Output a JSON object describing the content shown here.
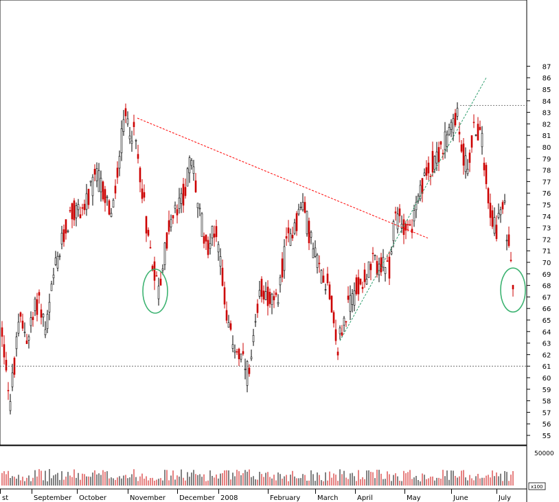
{
  "chart_data": {
    "type": "candlestick",
    "x_labels": [
      "st",
      "September",
      "October",
      "November",
      "December",
      "2008",
      "February",
      "March",
      "April",
      "May",
      "June",
      "July"
    ],
    "y_ticks": [
      55,
      56,
      57,
      58,
      59,
      60,
      61,
      62,
      63,
      64,
      65,
      66,
      67,
      68,
      69,
      70,
      71,
      72,
      73,
      74,
      75,
      76,
      77,
      78,
      79,
      80,
      81,
      82,
      83,
      84,
      85,
      86,
      87
    ],
    "ylim": [
      54.5,
      87.3
    ],
    "grid": false,
    "colors": {
      "up": "#000000",
      "down": "#cc0000",
      "trend_red": "#ff0000",
      "trend_green": "#2e9e6e",
      "circle": "#3cb371",
      "hline": "#555555"
    },
    "horizontal_lines": [
      61,
      83.6
    ],
    "trendlines": [
      {
        "color": "red",
        "from": {
          "month": "November",
          "value": 82.5
        },
        "to": {
          "month": "May",
          "value": 72.4
        }
      },
      {
        "color": "green",
        "from": {
          "month": "March",
          "value": 63.2
        },
        "to": {
          "month": "June",
          "value": 86
        }
      }
    ],
    "highlights": [
      {
        "month": "November",
        "value": 67.5
      },
      {
        "month": "July",
        "value": 67.6
      }
    ],
    "volume": {
      "label": "50000",
      "x_scale": "x100"
    }
  }
}
